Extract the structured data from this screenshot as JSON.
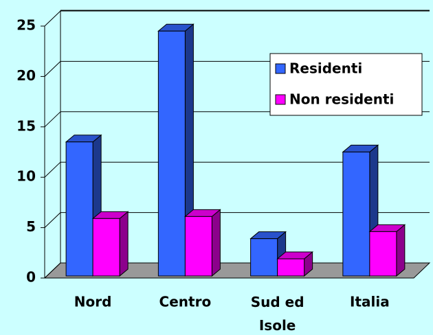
{
  "chart_data": {
    "type": "bar3d",
    "categories": [
      "Nord",
      "Centro",
      "Sud ed Isole",
      "Italia"
    ],
    "series": [
      {
        "name": "Residenti",
        "color": "#3366ff",
        "values": [
          13.3,
          24.3,
          3.7,
          12.3
        ]
      },
      {
        "name": "Non residenti",
        "color": "#ff00ff",
        "values": [
          5.7,
          5.9,
          1.7,
          4.4
        ]
      }
    ],
    "ylim": [
      0,
      25
    ],
    "yticks": [
      0,
      5,
      10,
      15,
      20,
      25
    ],
    "grid": true,
    "legend": "upper right"
  }
}
